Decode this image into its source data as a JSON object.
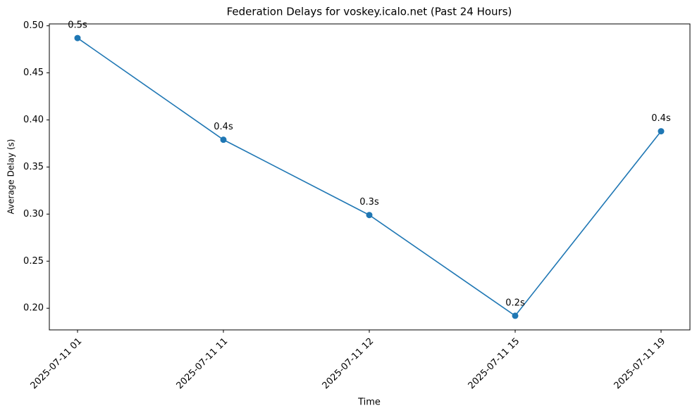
{
  "chart_data": {
    "type": "line",
    "title": "Federation Delays for voskey.icalo.net (Past 24 Hours)",
    "x_label": "Time",
    "y_label": "Average Delay (s)",
    "categories": [
      "2025-07-11 01",
      "2025-07-11 11",
      "2025-07-11 12",
      "2025-07-11 15",
      "2025-07-11 19"
    ],
    "values": [
      0.487,
      0.379,
      0.299,
      0.192,
      0.388
    ],
    "value_labels": [
      "0.5s",
      "0.4s",
      "0.3s",
      "0.2s",
      "0.4s"
    ],
    "color": "#1f77b4",
    "ylim": [
      0.177,
      0.502
    ],
    "yticks": [
      {
        "value": 0.2,
        "label": "0.20"
      },
      0.25,
      {
        "value": 0.3,
        "label": "0.30"
      },
      0.35,
      {
        "value": 0.4,
        "label": "0.40"
      },
      0.45,
      {
        "value": 0.5,
        "label": "0.50"
      }
    ],
    "grid": false
  }
}
